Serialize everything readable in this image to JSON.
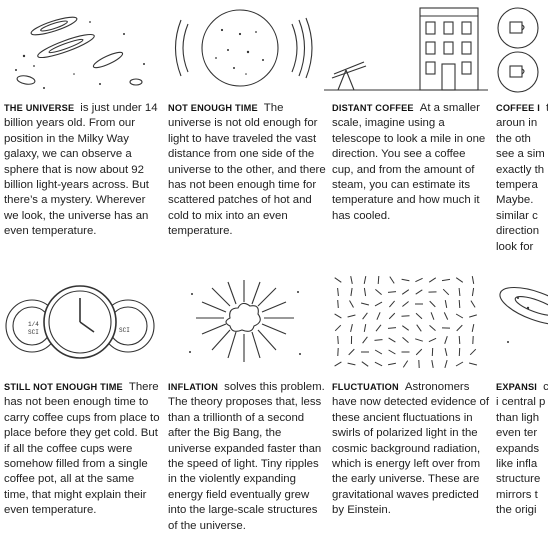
{
  "items": [
    {
      "heading": "The Universe",
      "body": "is just under 14 billion years old. From our position in the Milky Way galaxy, we can observe a sphere that is now about 92 billion light-years across. But there’s a mystery. Wherever we look, the universe has an even temperature.",
      "icon": "galaxies-illustration"
    },
    {
      "heading": "Not Enough Time",
      "body": "The universe is not old enough for light to have traveled the vast distance from one side of the universe to the other, and there has not been enough time for scattered patches of hot and cold to mix into an even temperature.",
      "icon": "radiating-sphere-illustration"
    },
    {
      "heading": "Distant Coffee",
      "body": "At a smaller scale, imagine using a telescope to look a mile in one direction. You see a coffee cup, and from the amount of steam, you can estimate its temperature and how much it has cooled.",
      "icon": "telescope-building-illustration"
    },
    {
      "heading": "Coffee I",
      "body": "turn aroun in the oth see a sim exactly th tempera Maybe. similar c direction look for",
      "icon": "coffee-cups-windows-illustration"
    },
    {
      "heading": "Still Not Enough Time",
      "body": "There has not been enough time to carry coffee cups from place to place before they get cold. But if all the coffee cups were somehow filled from a single coffee pot, all at the same time, that might explain their even temperature.",
      "icon": "clock-cups-illustration"
    },
    {
      "heading": "Inflation",
      "body": "solves this problem. The theory proposes that, less than a trillionth of a second after the Big Bang, the universe expanded faster than the speed of light. Tiny ripples in the violently expanding energy field eventually grew into the large-scale structures of the universe.",
      "icon": "expansion-burst-illustration"
    },
    {
      "heading": "Fluctuation",
      "body": "Astronomers have now detected evidence of these ancient fluctuations in swirls of polarized light in the cosmic background radiation, which is energy left over from the early universe. These are gravitational waves predicted by Einstein.",
      "icon": "polarization-field-illustration"
    },
    {
      "heading": "Expansi",
      "body": "coffee, i central p than ligh even ter expands like infla structure mirrors t the origi",
      "icon": "galaxy-fragment-illustration"
    }
  ],
  "cup_labels": {
    "left": "1/4 SCI",
    "right": "SCI"
  }
}
